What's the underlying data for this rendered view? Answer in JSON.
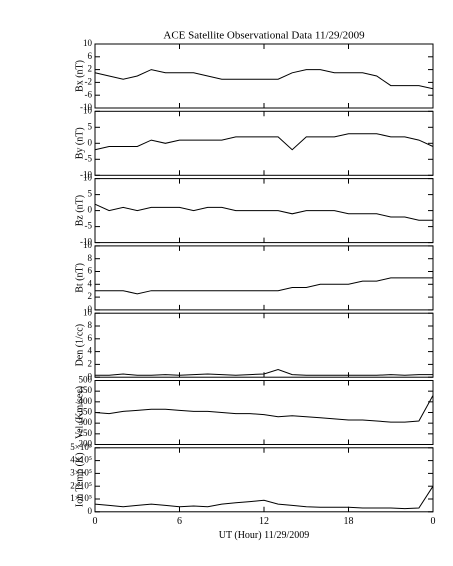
{
  "chart_data": [
    {
      "type": "line",
      "title": "ACE Satellite Observational Data   11/29/2009",
      "ylabel": "Bx (nT)",
      "x": [
        0,
        1,
        2,
        3,
        4,
        5,
        6,
        7,
        8,
        9,
        10,
        11,
        12,
        13,
        14,
        15,
        16,
        17,
        18,
        19,
        20,
        21,
        22,
        23,
        24
      ],
      "xlim": [
        0,
        24
      ],
      "values": [
        1,
        0,
        -1,
        0,
        2,
        1,
        1,
        1,
        0,
        -1,
        -1,
        -1,
        -1,
        -1,
        1,
        2,
        2,
        1,
        1,
        1,
        0,
        -3,
        -3,
        -3,
        -4
      ],
      "ylim": [
        -10,
        10
      ],
      "yticks": [
        -10,
        -6,
        -2,
        2,
        6,
        10
      ],
      "color": "#000000"
    },
    {
      "type": "line",
      "ylabel": "By (nT)",
      "x": [
        0,
        1,
        2,
        3,
        4,
        5,
        6,
        7,
        8,
        9,
        10,
        11,
        12,
        13,
        14,
        15,
        16,
        17,
        18,
        19,
        20,
        21,
        22,
        23,
        24
      ],
      "xlim": [
        0,
        24
      ],
      "values": [
        -2,
        -1,
        -1,
        -1,
        1,
        0,
        1,
        1,
        1,
        1,
        2,
        2,
        2,
        2,
        -2,
        2,
        2,
        2,
        3,
        3,
        3,
        2,
        2,
        1,
        -1
      ],
      "ylim": [
        -10,
        10
      ],
      "yticks": [
        -10,
        -5,
        0,
        5,
        10
      ],
      "color": "#000000"
    },
    {
      "type": "line",
      "ylabel": "Bz (nT)",
      "x": [
        0,
        1,
        2,
        3,
        4,
        5,
        6,
        7,
        8,
        9,
        10,
        11,
        12,
        13,
        14,
        15,
        16,
        17,
        18,
        19,
        20,
        21,
        22,
        23,
        24
      ],
      "xlim": [
        0,
        24
      ],
      "values": [
        2,
        0,
        1,
        0,
        1,
        1,
        1,
        0,
        1,
        1,
        0,
        0,
        0,
        0,
        -1,
        0,
        0,
        0,
        -1,
        -1,
        -1,
        -2,
        -2,
        -3,
        -3
      ],
      "ylim": [
        -10,
        10
      ],
      "yticks": [
        -10,
        -5,
        0,
        5,
        10
      ],
      "color": "#000000"
    },
    {
      "type": "line",
      "ylabel": "Bt (nT)",
      "x": [
        0,
        1,
        2,
        3,
        4,
        5,
        6,
        7,
        8,
        9,
        10,
        11,
        12,
        13,
        14,
        15,
        16,
        17,
        18,
        19,
        20,
        21,
        22,
        23,
        24
      ],
      "xlim": [
        0,
        24
      ],
      "values": [
        3,
        3,
        3,
        2.5,
        3,
        3,
        3,
        3,
        3,
        3,
        3,
        3,
        3,
        3,
        3.5,
        3.5,
        4,
        4,
        4,
        4.5,
        4.5,
        5,
        5,
        5,
        5
      ],
      "ylim": [
        0,
        10
      ],
      "yticks": [
        0,
        2,
        4,
        6,
        8,
        10
      ],
      "color": "#000000"
    },
    {
      "type": "line",
      "ylabel": "Den (1/cc)",
      "x": [
        0,
        1,
        2,
        3,
        4,
        5,
        6,
        7,
        8,
        9,
        10,
        11,
        12,
        13,
        14,
        15,
        16,
        17,
        18,
        19,
        20,
        21,
        22,
        23,
        24
      ],
      "xlim": [
        0,
        24
      ],
      "values": [
        0.3,
        0.3,
        0.5,
        0.3,
        0.3,
        0.4,
        0.3,
        0.4,
        0.5,
        0.4,
        0.3,
        0.4,
        0.5,
        1.2,
        0.4,
        0.3,
        0.3,
        0.3,
        0.3,
        0.3,
        0.3,
        0.4,
        0.3,
        0.4,
        0.4
      ],
      "ylim": [
        0,
        10
      ],
      "yticks": [
        0,
        2,
        4,
        6,
        8,
        10
      ],
      "color": "#000000"
    },
    {
      "type": "line",
      "ylabel": "Vel (Km/sec)",
      "x": [
        0,
        1,
        2,
        3,
        4,
        5,
        6,
        7,
        8,
        9,
        10,
        11,
        12,
        13,
        14,
        15,
        16,
        17,
        18,
        19,
        20,
        21,
        22,
        23,
        24
      ],
      "xlim": [
        0,
        24
      ],
      "values": [
        350,
        345,
        355,
        360,
        365,
        365,
        360,
        355,
        355,
        350,
        345,
        345,
        340,
        330,
        335,
        330,
        325,
        320,
        315,
        315,
        310,
        305,
        305,
        310,
        430
      ],
      "ylim": [
        200,
        500
      ],
      "yticks": [
        200,
        250,
        300,
        350,
        400,
        450,
        500
      ],
      "color": "#000000"
    },
    {
      "type": "line",
      "ylabel": "Ion Temp (K)",
      "xlabel": "UT (Hour)  11/29/2009",
      "x": [
        0,
        1,
        2,
        3,
        4,
        5,
        6,
        7,
        8,
        9,
        10,
        11,
        12,
        13,
        14,
        15,
        16,
        17,
        18,
        19,
        20,
        21,
        22,
        23,
        24
      ],
      "xlim": [
        0,
        24
      ],
      "values": [
        60000,
        50000,
        40000,
        50000,
        60000,
        50000,
        40000,
        45000,
        40000,
        60000,
        70000,
        80000,
        90000,
        60000,
        50000,
        40000,
        35000,
        35000,
        35000,
        30000,
        30000,
        30000,
        25000,
        30000,
        200000
      ],
      "ylim": [
        0,
        500000
      ],
      "yticks": [
        0,
        {
          "value": 100000,
          "label": "1×10⁵"
        },
        {
          "value": 200000,
          "label": "2×10⁵"
        },
        {
          "value": 300000,
          "label": "3×10⁵"
        },
        {
          "value": 400000,
          "label": "4×10⁵"
        },
        {
          "value": 500000,
          "label": "5×10⁵"
        }
      ],
      "xticks": [
        0,
        6,
        12,
        18,
        {
          "value": 24,
          "label": "0"
        }
      ],
      "color": "#000000"
    }
  ]
}
